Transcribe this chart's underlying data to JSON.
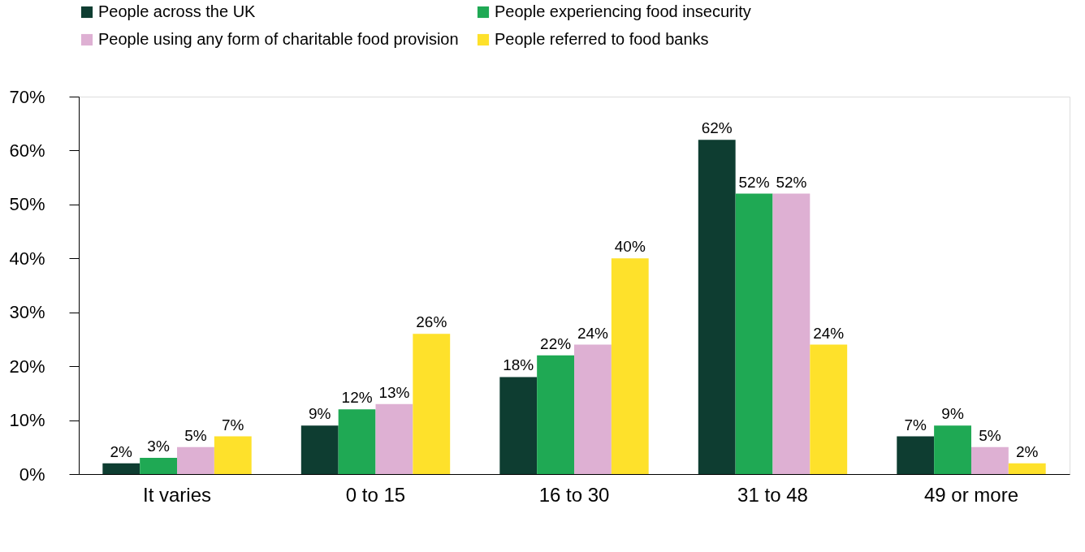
{
  "chart_data": {
    "type": "bar",
    "categories": [
      "It varies",
      "0 to 15",
      "16 to 30",
      "31 to 48",
      "49 or more"
    ],
    "series": [
      {
        "name": "People across the UK",
        "color": "#0e3d31",
        "values": [
          2,
          9,
          18,
          62,
          7
        ],
        "value_labels": [
          "2%",
          "9%",
          "18%",
          "62%",
          "7%"
        ]
      },
      {
        "name": "People experiencing food insecurity",
        "color": "#1fa954",
        "values": [
          3,
          12,
          22,
          52,
          9
        ],
        "value_labels": [
          "3%",
          "12%",
          "22%",
          "52%",
          "9%"
        ]
      },
      {
        "name": "People using any form of charitable food provision",
        "color": "#deb0d3",
        "values": [
          5,
          13,
          24,
          52,
          5
        ],
        "value_labels": [
          "5%",
          "13%",
          "24%",
          "52%",
          "5%"
        ]
      },
      {
        "name": "People referred to food banks",
        "color": "#fee12b",
        "values": [
          7,
          26,
          40,
          24,
          2
        ],
        "value_labels": [
          "7%",
          "26%",
          "40%",
          "24%",
          "2%"
        ]
      }
    ],
    "ylim": [
      0,
      70
    ],
    "yticks": [
      {
        "value": 0,
        "label": "0%"
      },
      {
        "value": 10,
        "label": "10%"
      },
      {
        "value": 20,
        "label": "20%"
      },
      {
        "value": 30,
        "label": "30%"
      },
      {
        "value": 40,
        "label": "40%"
      },
      {
        "value": 50,
        "label": "50%"
      },
      {
        "value": 60,
        "label": "60%"
      },
      {
        "value": 70,
        "label": "70%"
      }
    ],
    "grid": false,
    "legend": "top"
  }
}
